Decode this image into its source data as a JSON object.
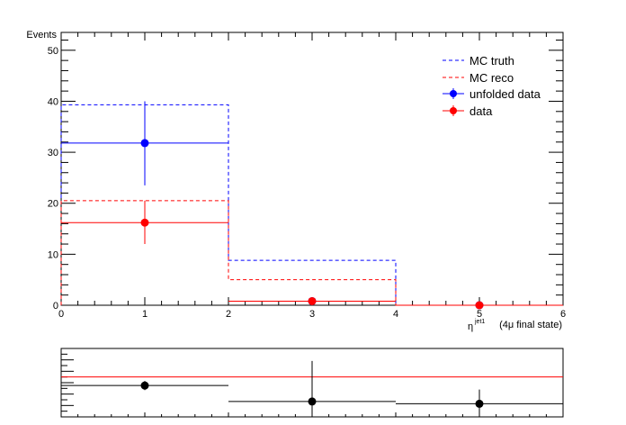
{
  "chart_data": {
    "type": "histogram",
    "ylabel": "Events",
    "xlabel_main": "η",
    "xlabel_sup": "jet1",
    "xlabel_suffix": "(4μ final state)",
    "xlim": [
      0,
      6
    ],
    "ylim": [
      0,
      53.5
    ],
    "x_ticks": [
      "0",
      "1",
      "2",
      "3",
      "4",
      "5",
      "6"
    ],
    "y_ticks": [
      "0",
      "10",
      "20",
      "30",
      "40",
      "50"
    ],
    "bin_edges": [
      0,
      2,
      4,
      6
    ],
    "bin_centers": [
      1,
      3,
      5
    ],
    "legend": {
      "position": "top-right",
      "entries": [
        {
          "label": "MC truth",
          "style": "dashed-line",
          "color": "#0000ff"
        },
        {
          "label": "MC reco",
          "style": "dashed-line",
          "color": "#ff0000"
        },
        {
          "label": "unfolded data",
          "style": "marker",
          "color": "#0000ff"
        },
        {
          "label": "data",
          "style": "marker",
          "color": "#ff0000"
        }
      ]
    },
    "series": [
      {
        "key": "mc_truth",
        "kind": "dashed-hist",
        "color": "#0000ff",
        "values": [
          39.3,
          8.8,
          0
        ]
      },
      {
        "key": "mc_reco",
        "kind": "dashed-hist",
        "color": "#ff0000",
        "values": [
          20.5,
          5.0,
          0
        ]
      },
      {
        "key": "unfolded",
        "kind": "points",
        "color": "#0000ff",
        "values": [
          31.8,
          0.8,
          0
        ],
        "errors": [
          [
            23.5,
            40.0
          ],
          [
            0.8,
            0.8
          ],
          [
            0,
            0
          ]
        ]
      },
      {
        "key": "data",
        "kind": "points",
        "color": "#ff0000",
        "values": [
          16.2,
          0.8,
          0
        ],
        "errors": [
          [
            12.0,
            20.5
          ],
          [
            0.8,
            0.8
          ],
          [
            0,
            0
          ]
        ]
      }
    ],
    "ratio": {
      "ylim": [
        0,
        1.2
      ],
      "reference_line": 0.7,
      "reference_color": "#ff0000",
      "values": [
        0.55,
        0.27,
        0.23
      ],
      "errors": [
        [
          0.47,
          0.63
        ],
        [
          0.0,
          0.98
        ],
        [
          0.0,
          0.48
        ]
      ],
      "color": "#000000"
    }
  }
}
